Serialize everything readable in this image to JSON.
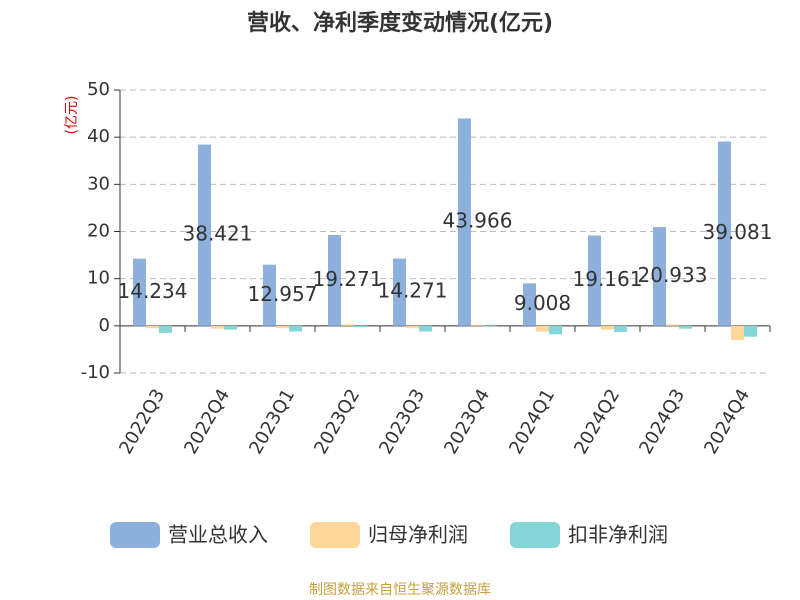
{
  "chart_data": {
    "type": "bar",
    "title": "营收、净利季度变动情况(亿元)",
    "y_label": "(亿元)",
    "categories": [
      "2022Q3",
      "2022Q4",
      "2023Q1",
      "2023Q2",
      "2023Q3",
      "2023Q4",
      "2024Q1",
      "2024Q2",
      "2024Q3",
      "2024Q4"
    ],
    "series": [
      {
        "name": "营业总收入",
        "color": "#8eb0dc",
        "values": [
          14.234,
          38.421,
          12.957,
          19.271,
          14.271,
          43.966,
          9.008,
          19.161,
          20.933,
          39.081
        ]
      },
      {
        "name": "归母净利润",
        "color": "#fdd79a",
        "values": [
          -0.5,
          -0.6,
          -0.5,
          0.3,
          -0.5,
          0.2,
          -1.2,
          -0.8,
          0.3,
          -3.0
        ]
      },
      {
        "name": "扣非净利润",
        "color": "#84d6d9",
        "values": [
          -1.5,
          -0.8,
          -1.2,
          -0.3,
          -1.2,
          -0.2,
          -1.8,
          -1.3,
          -0.6,
          -2.3
        ]
      }
    ],
    "ylim": [
      -10,
      50
    ],
    "yticks": [
      -10,
      0,
      10,
      20,
      30,
      40,
      50
    ],
    "grid": true,
    "source": "制图数据来自恒生聚源数据库"
  }
}
